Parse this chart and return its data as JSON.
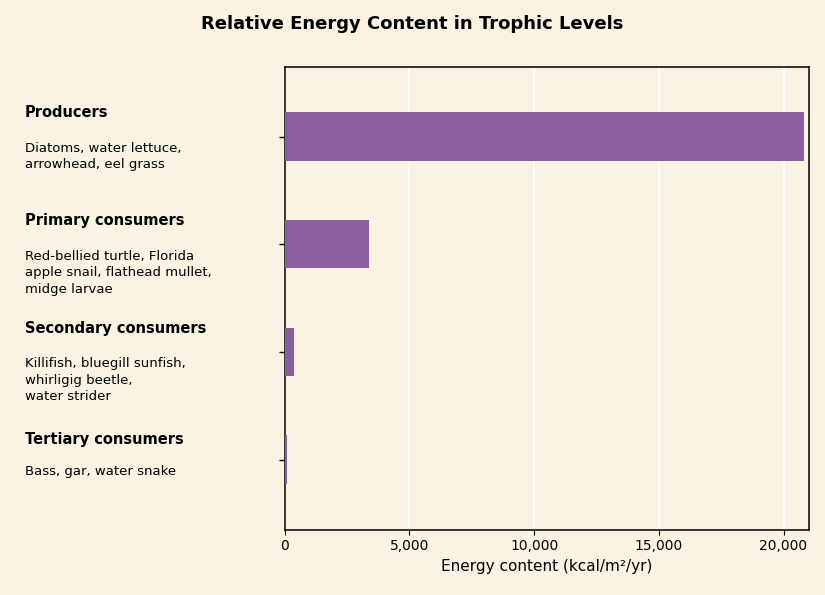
{
  "title": "Relative Energy Content in Trophic Levels",
  "title_bg_color": "#F5A96A",
  "chart_bg_color": "#FAF3E3",
  "outer_bg_color": "#FAF3E3",
  "bar_color": "#8B5EA0",
  "bold_labels": [
    "Producers",
    "Primary consumers",
    "Secondary consumers",
    "Tertiary consumers"
  ],
  "sub_labels": [
    "Diatoms, water lettuce,\narrowhead, eel grass",
    "Red-bellied turtle, Florida\napple snail, flathead mullet,\nmidge larvae",
    "Killifish, bluegill sunfish,\nwhirligig beetle,\nwater strider",
    "Bass, gar, water snake"
  ],
  "values": [
    20810,
    3368,
    383,
    111
  ],
  "xlim": [
    0,
    21000
  ],
  "xticks": [
    0,
    5000,
    10000,
    15000,
    20000
  ],
  "xlabel": "Energy content (kcal/m²/yr)",
  "bar_height": 0.45,
  "figsize": [
    8.25,
    5.95
  ],
  "dpi": 100,
  "title_fontsize": 13,
  "label_bold_fontsize": 10.5,
  "label_sub_fontsize": 9.5,
  "xlabel_fontsize": 11
}
